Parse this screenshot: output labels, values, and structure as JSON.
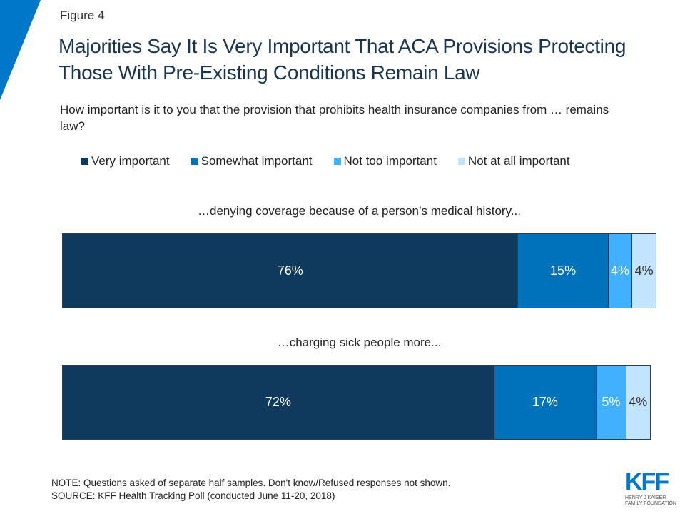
{
  "figure_label": "Figure 4",
  "title": "Majorities Say It Is Very Important That ACA Provisions Protecting Those With Pre-Existing Conditions Remain Law",
  "subtitle": "How important is it to you that the provision that prohibits health insurance companies from … remains law?",
  "chart_data": {
    "type": "bar",
    "orientation": "horizontal-stacked",
    "categories": [
      "…denying coverage because of a person’s medical history...",
      "…charging sick people more..."
    ],
    "series": [
      {
        "name": "Very important",
        "color": "#0f3a5e",
        "values": [
          76,
          72
        ]
      },
      {
        "name": "Somewhat important",
        "color": "#0072bc",
        "values": [
          15,
          17
        ]
      },
      {
        "name": "Not too important",
        "color": "#41b0ff",
        "values": [
          4,
          5
        ]
      },
      {
        "name": "Not at all important",
        "color": "#c2e4ff",
        "values": [
          4,
          4
        ]
      }
    ],
    "data_label_suffix": "%",
    "legend": "top"
  },
  "note": "NOTE: Questions asked of separate half samples. Don't know/Refused responses not shown.",
  "source": "SOURCE: KFF Health Tracking Poll (conducted June 11-20, 2018)",
  "logo": {
    "text": "KFF",
    "subtext": "HENRY J KAISER FAMILY FOUNDATION"
  }
}
